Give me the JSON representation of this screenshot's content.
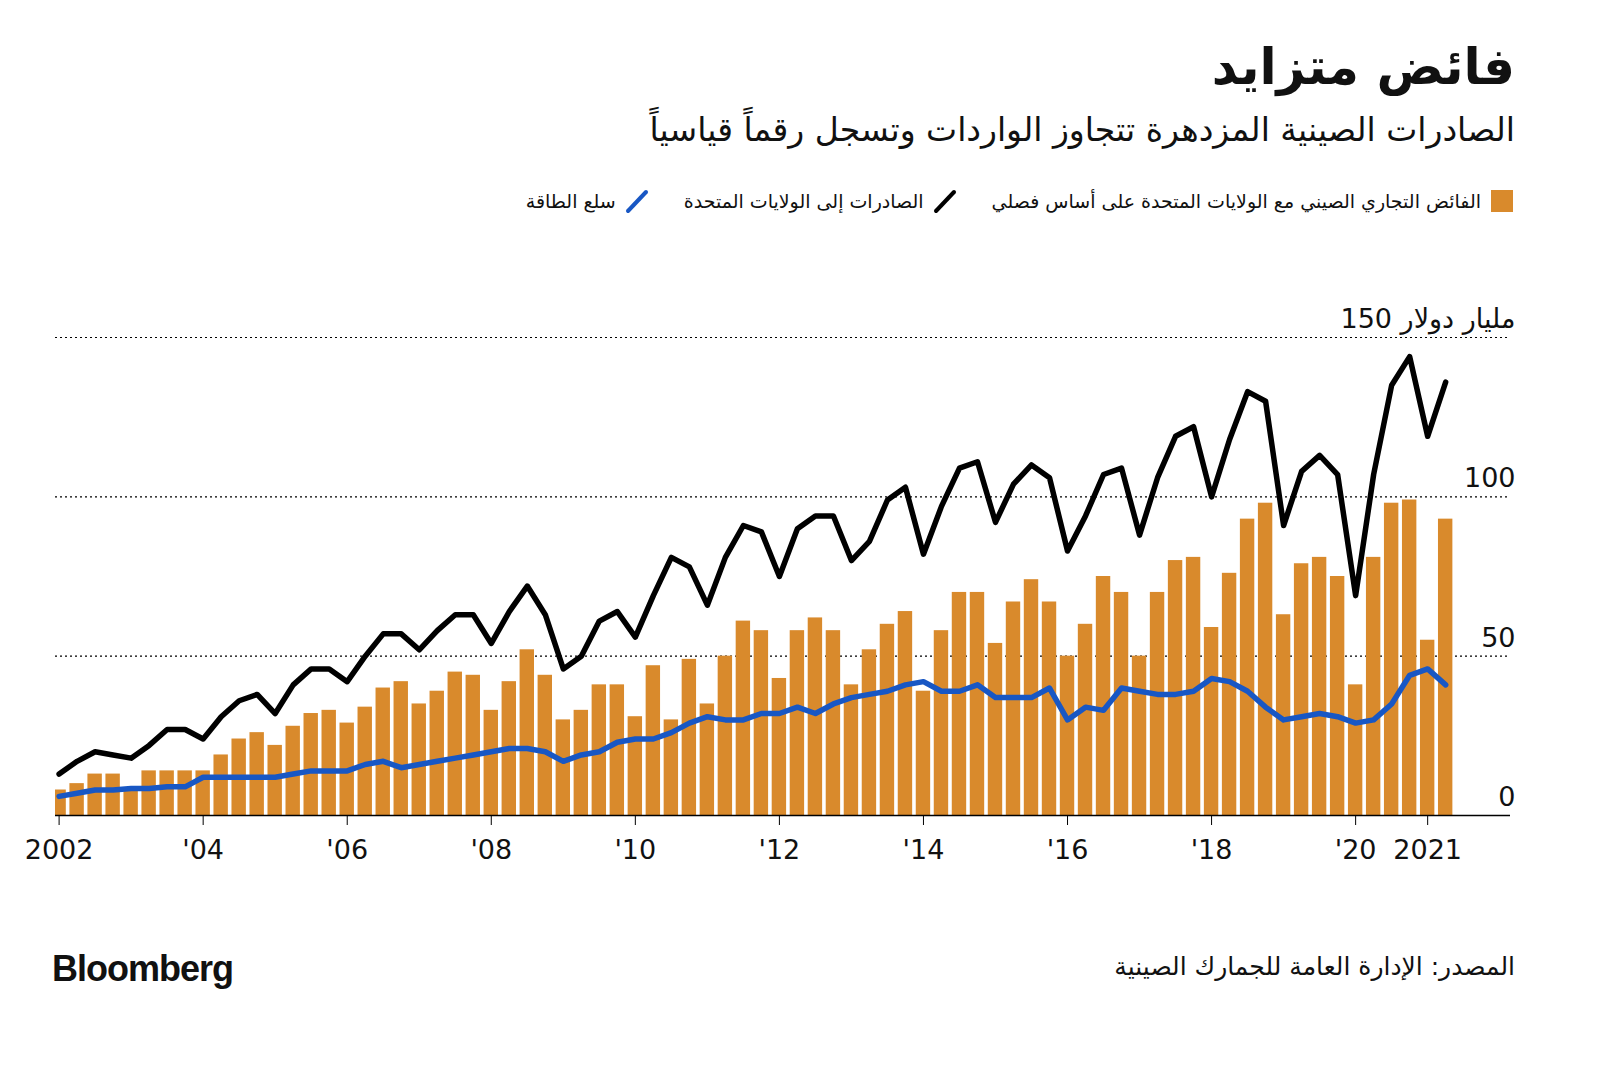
{
  "chart_data": {
    "type": "bar",
    "title": "فائض متزايد",
    "subtitle": "الصادرات الصينية المزدهرة تتجاوز الواردات وتسجل رقماً قياسياً",
    "source": "المصدر: الإدارة العامة للجمارك الصينية",
    "brand": "Bloomberg",
    "grid": true,
    "x": [
      2002,
      2002.25,
      2002.5,
      2002.75,
      2003,
      2003.25,
      2003.5,
      2003.75,
      2004,
      2004.25,
      2004.5,
      2004.75,
      2005,
      2005.25,
      2005.5,
      2005.75,
      2006,
      2006.25,
      2006.5,
      2006.75,
      2007,
      2007.25,
      2007.5,
      2007.75,
      2008,
      2008.25,
      2008.5,
      2008.75,
      2009,
      2009.25,
      2009.5,
      2009.75,
      2010,
      2010.25,
      2010.5,
      2010.75,
      2011,
      2011.25,
      2011.5,
      2011.75,
      2012,
      2012.25,
      2012.5,
      2012.75,
      2013,
      2013.25,
      2013.5,
      2013.75,
      2014,
      2014.25,
      2014.5,
      2014.75,
      2015,
      2015.25,
      2015.5,
      2015.75,
      2016,
      2016.25,
      2016.5,
      2016.75,
      2017,
      2017.25,
      2017.5,
      2017.75,
      2018,
      2018.25,
      2018.5,
      2018.75,
      2019,
      2019.25,
      2019.5,
      2019.75,
      2020,
      2020.25,
      2020.5,
      2020.75,
      2021,
      2021.25
    ],
    "xlim": [
      2001.95,
      2022.15
    ],
    "xticks": [
      {
        "value": 2002,
        "label": "2002"
      },
      {
        "value": 2004,
        "label": "'04"
      },
      {
        "value": 2006,
        "label": "'06"
      },
      {
        "value": 2008,
        "label": "'08"
      },
      {
        "value": 2010,
        "label": "'10"
      },
      {
        "value": 2012,
        "label": "'12"
      },
      {
        "value": 2014,
        "label": "'14"
      },
      {
        "value": 2016,
        "label": "'16"
      },
      {
        "value": 2018,
        "label": "'18"
      },
      {
        "value": 2020,
        "label": "'20"
      },
      {
        "value": 2021,
        "label": "2021"
      }
    ],
    "ylim": [
      0,
      150
    ],
    "yticks": [
      0,
      50,
      100,
      {
        "value": 150,
        "label": "150 مليار دولار"
      }
    ],
    "series": [
      {
        "name": "الفائض التجاري الصيني مع الولايات المتحدة على أساس فصلي",
        "type": "bar",
        "color": "#d98a2c",
        "values": [
          8,
          10,
          13,
          13,
          8.5,
          14,
          14,
          14,
          14,
          19,
          24,
          26,
          22,
          28,
          32,
          33,
          29,
          34,
          40,
          42,
          35,
          39,
          45,
          44,
          33,
          42,
          52,
          44,
          30,
          33,
          41,
          41,
          31,
          47,
          30,
          49,
          35,
          50,
          61,
          58,
          43,
          58,
          62,
          58,
          41,
          52,
          60,
          64,
          39,
          58,
          70,
          70,
          54,
          67,
          74,
          67,
          50,
          60,
          75,
          70,
          50,
          70,
          80,
          81,
          59,
          76,
          93,
          98,
          63,
          79,
          81,
          75,
          41,
          81,
          98,
          99,
          55,
          93
        ]
      },
      {
        "name": "الصادرات إلى الولايات المتحدة",
        "type": "line",
        "color": "#000000",
        "values": [
          13,
          17,
          20,
          19,
          18,
          22,
          27,
          27,
          24,
          31,
          36,
          38,
          32,
          41,
          46,
          46,
          42,
          50,
          57,
          57,
          52,
          58,
          63,
          63,
          54,
          64,
          72,
          63,
          46,
          50,
          61,
          64,
          56,
          69,
          81,
          78,
          66,
          81,
          91,
          89,
          75,
          90,
          94,
          94,
          80,
          86,
          99,
          103,
          82,
          97,
          109,
          111,
          92,
          104,
          110,
          106,
          83,
          94,
          107,
          109,
          88,
          106,
          119,
          122,
          100,
          118,
          133,
          130,
          91,
          108,
          113,
          107,
          69,
          107,
          135,
          144,
          119,
          136
        ]
      },
      {
        "name": "سلع الطاقة",
        "type": "line",
        "color": "#1857c4",
        "values": [
          6,
          7,
          8,
          8,
          8.5,
          8.5,
          9,
          9,
          12,
          12,
          12,
          12,
          12,
          13,
          14,
          14,
          14,
          16,
          17,
          15,
          16,
          17,
          18,
          19,
          20,
          21,
          21,
          20,
          17,
          19,
          20,
          23,
          24,
          24,
          26,
          29,
          31,
          30,
          30,
          32,
          32,
          34,
          32,
          35,
          37,
          38,
          39,
          41,
          42,
          39,
          39,
          41,
          37,
          37,
          37,
          40,
          30,
          34,
          33,
          40,
          39,
          38,
          38,
          39,
          43,
          42,
          39,
          34,
          30,
          31,
          32,
          31,
          29,
          30,
          35,
          44,
          46,
          41
        ]
      }
    ]
  }
}
